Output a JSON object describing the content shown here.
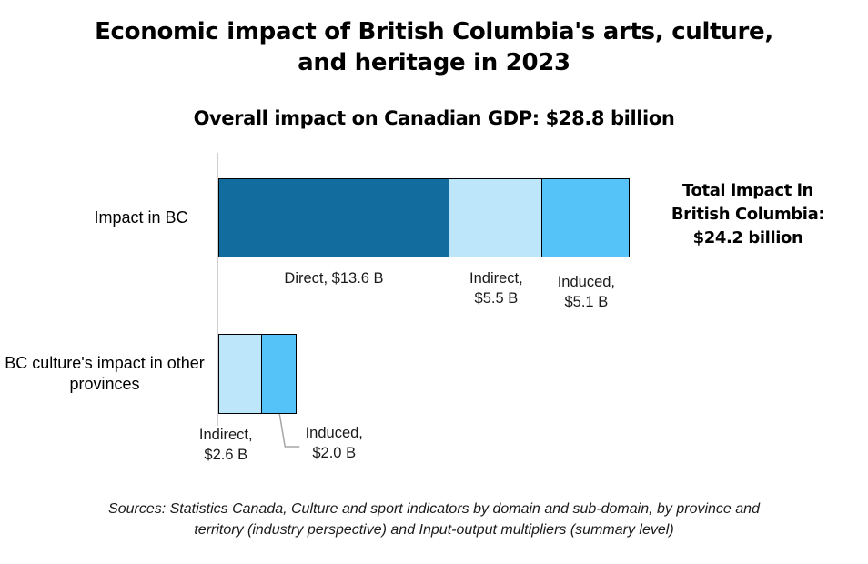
{
  "chart_data": {
    "type": "bar",
    "stacked": true,
    "orientation": "horizontal",
    "title": [
      "Economic impact of British Columbia's arts, culture,",
      "and heritage in 2023"
    ],
    "subtitle": "Overall impact on Canadian GDP: $28.8 billion",
    "categories": [
      "Impact in BC",
      "BC culture's impact in other provinces"
    ],
    "series": [
      {
        "name": "Direct",
        "values": [
          13.6,
          0
        ],
        "color": "#126c9e",
        "labels": [
          "Direct, $13.6 B",
          ""
        ]
      },
      {
        "name": "Indirect",
        "values": [
          5.5,
          2.6
        ],
        "color": "#bde6fb",
        "labels": [
          "Indirect,\n$5.5 B",
          "Indirect,\n$2.6 B"
        ]
      },
      {
        "name": "Induced",
        "values": [
          5.1,
          2.0
        ],
        "color": "#55c3f8",
        "labels": [
          "Induced,\n$5.1 B",
          "Induced,\n$2.0 B"
        ]
      }
    ],
    "xlim": [
      0,
      24.2
    ],
    "grid": false,
    "annotation": [
      "Total impact in",
      "British Columbia:",
      "$24.2 billion"
    ],
    "source": [
      "Sources: Statistics Canada, Culture and sport indicators by domain and sub-domain, by province and",
      "territory  (industry perspective) and Input-output multipliers (summary level)"
    ]
  }
}
